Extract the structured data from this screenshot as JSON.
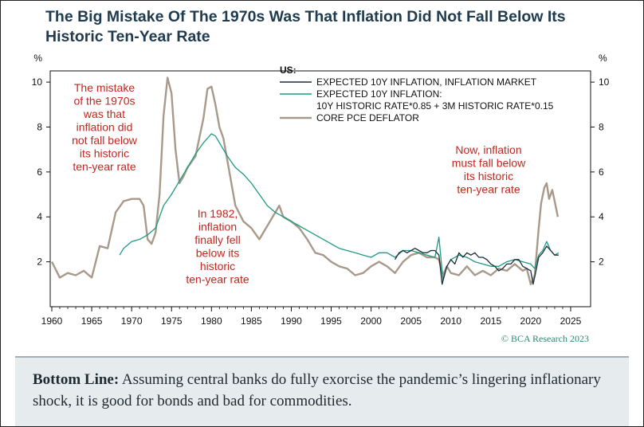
{
  "title": "The Big Mistake Of The 1970s Was That Inflation Did Not Fall Below Its Historic Ten-Year Rate",
  "credit": "© BCA Research 2023",
  "bottom_line": {
    "label": "Bottom Line:",
    "text": "Assuming central banks do fully exorcise the pandemic’s lingering inflationary shock, it is good for bonds and bad for commodities."
  },
  "annotations": [
    {
      "lines": [
        "The mistake",
        "of the 1970s",
        "was that",
        "inflation did",
        "not fall below",
        "its historic",
        "ten-year rate"
      ]
    },
    {
      "lines": [
        "In 1982,",
        "inflation",
        "finally fell",
        "below its",
        "historic",
        "ten-year rate"
      ]
    },
    {
      "lines": [
        "Now, inflation",
        "must fall below",
        "its historic",
        "ten-year rate"
      ]
    }
  ],
  "colors": {
    "series_market": "#1b2f3a",
    "series_historic": "#1f9a82",
    "series_pce": "#a89a8a",
    "annotation": "#c2271f",
    "title": "#1f3b4d",
    "bottom_box": "#e6ebee"
  },
  "chart_data": {
    "type": "line",
    "title": "The Big Mistake Of The 1970s Was That Inflation Did Not Fall Below Its Historic Ten-Year Rate",
    "xlabel": "",
    "ylabel": "%",
    "y_unit_left": "%",
    "y_unit_right": "%",
    "xlim": [
      1959.8,
      2027.5
    ],
    "ylim": [
      0,
      10.5
    ],
    "x_ticks": [
      1960,
      1965,
      1970,
      1975,
      1980,
      1985,
      1990,
      1995,
      2000,
      2005,
      2010,
      2015,
      2020,
      2025
    ],
    "y_ticks": [
      2,
      4,
      6,
      8,
      10
    ],
    "legend_title": "US:",
    "legend_position": "top-right",
    "grid": false,
    "series": [
      {
        "name": "EXPECTED 10Y INFLATION, INFLATION MARKET",
        "color": "#1b2f3a",
        "x": [
          2003,
          2003.5,
          2004,
          2004.5,
          2005,
          2005.5,
          2006,
          2006.5,
          2007,
          2007.5,
          2008,
          2008.5,
          2008.9,
          2009.2,
          2009.5,
          2010,
          2010.5,
          2011,
          2011.5,
          2012,
          2012.5,
          2013,
          2013.5,
          2014,
          2014.5,
          2015,
          2015.5,
          2016,
          2016.5,
          2017,
          2017.5,
          2018,
          2018.5,
          2019,
          2019.5,
          2020,
          2020.3,
          2020.6,
          2021,
          2021.5,
          2022,
          2022.5,
          2023,
          2023.5
        ],
        "y": [
          2.1,
          2.4,
          2.5,
          2.4,
          2.5,
          2.6,
          2.5,
          2.4,
          2.4,
          2.5,
          2.5,
          2.3,
          1.0,
          1.4,
          1.8,
          2.1,
          1.9,
          2.4,
          2.2,
          2.4,
          2.3,
          2.4,
          2.2,
          2.2,
          2.1,
          1.9,
          1.8,
          1.6,
          1.7,
          1.9,
          1.9,
          2.1,
          2.1,
          1.8,
          1.7,
          1.6,
          1.0,
          1.5,
          2.2,
          2.4,
          2.7,
          2.5,
          2.3,
          2.3
        ]
      },
      {
        "name": "EXPECTED 10Y INFLATION: 10Y HISTORIC RATE*0.85 + 3M HISTORIC RATE*0.15",
        "color": "#1f9a82",
        "x": [
          1968.5,
          1969,
          1970,
          1971,
          1972,
          1973,
          1974,
          1975,
          1976,
          1977,
          1978,
          1979,
          1980,
          1980.5,
          1981,
          1982,
          1983,
          1984,
          1985,
          1986,
          1987,
          1988,
          1989,
          1990,
          1991,
          1992,
          1993,
          1994,
          1995,
          1996,
          1997,
          1998,
          1999,
          2000,
          2001,
          2002,
          2003,
          2004,
          2005,
          2006,
          2007,
          2008,
          2008.5,
          2009,
          2009.5,
          2010,
          2011,
          2012,
          2013,
          2014,
          2015,
          2016,
          2017,
          2018,
          2019,
          2020,
          2020.5,
          2021,
          2021.5,
          2022,
          2022.5,
          2023,
          2023.5
        ],
        "y": [
          2.3,
          2.6,
          2.9,
          3.0,
          3.2,
          3.5,
          4.5,
          5.0,
          5.6,
          6.2,
          6.8,
          7.3,
          7.7,
          7.6,
          7.3,
          6.7,
          6.2,
          5.9,
          5.5,
          5.0,
          4.5,
          4.2,
          4.0,
          3.8,
          3.6,
          3.4,
          3.2,
          3.0,
          2.8,
          2.6,
          2.5,
          2.4,
          2.3,
          2.2,
          2.4,
          2.4,
          2.2,
          2.5,
          2.5,
          2.4,
          2.3,
          2.2,
          3.1,
          1.2,
          1.8,
          2.1,
          2.3,
          2.2,
          2.0,
          1.9,
          1.8,
          1.8,
          2.0,
          2.1,
          2.0,
          1.9,
          1.7,
          2.3,
          2.5,
          2.9,
          2.5,
          2.3,
          2.4
        ]
      },
      {
        "name": "CORE PCE DEFLATOR",
        "color": "#a89a8a",
        "x": [
          1960,
          1961,
          1962,
          1963,
          1964,
          1965,
          1966,
          1967,
          1968,
          1969,
          1970,
          1971,
          1971.5,
          1972,
          1972.5,
          1973,
          1973.5,
          1974,
          1974.5,
          1975,
          1975.5,
          1976,
          1976.5,
          1977,
          1978,
          1979,
          1979.5,
          1980,
          1980.5,
          1981,
          1981.5,
          1982,
          1982.5,
          1983,
          1984,
          1985,
          1986,
          1987,
          1988,
          1988.5,
          1989,
          1990,
          1991,
          1992,
          1993,
          1994,
          1995,
          1996,
          1997,
          1998,
          1999,
          2000,
          2001,
          2002,
          2003,
          2004,
          2005,
          2006,
          2007,
          2008,
          2008.5,
          2009,
          2009.5,
          2010,
          2011,
          2012,
          2013,
          2014,
          2015,
          2016,
          2017,
          2018,
          2019,
          2019.5,
          2020,
          2020.5,
          2021,
          2021.3,
          2021.7,
          2022,
          2022.3,
          2022.7,
          2023,
          2023.4
        ],
        "y": [
          2.0,
          1.3,
          1.5,
          1.4,
          1.6,
          1.3,
          2.7,
          2.6,
          4.2,
          4.7,
          4.8,
          4.8,
          4.5,
          3.0,
          2.8,
          3.3,
          5.0,
          8.5,
          10.2,
          9.5,
          7.0,
          5.5,
          5.8,
          6.2,
          6.7,
          8.4,
          9.7,
          9.8,
          9.0,
          8.0,
          7.5,
          6.5,
          5.5,
          4.5,
          3.8,
          3.5,
          3.0,
          3.6,
          4.2,
          4.5,
          4.0,
          3.8,
          3.5,
          3.0,
          2.4,
          2.3,
          2.0,
          1.8,
          1.7,
          1.4,
          1.5,
          1.8,
          2.0,
          1.8,
          1.5,
          2.0,
          2.3,
          2.4,
          2.2,
          2.2,
          2.1,
          1.4,
          1.8,
          1.5,
          1.4,
          1.8,
          1.4,
          1.6,
          1.4,
          1.7,
          1.6,
          1.9,
          1.6,
          1.7,
          1.0,
          1.4,
          3.5,
          4.6,
          5.3,
          5.5,
          4.8,
          5.2,
          4.7,
          4.0
        ]
      }
    ]
  }
}
